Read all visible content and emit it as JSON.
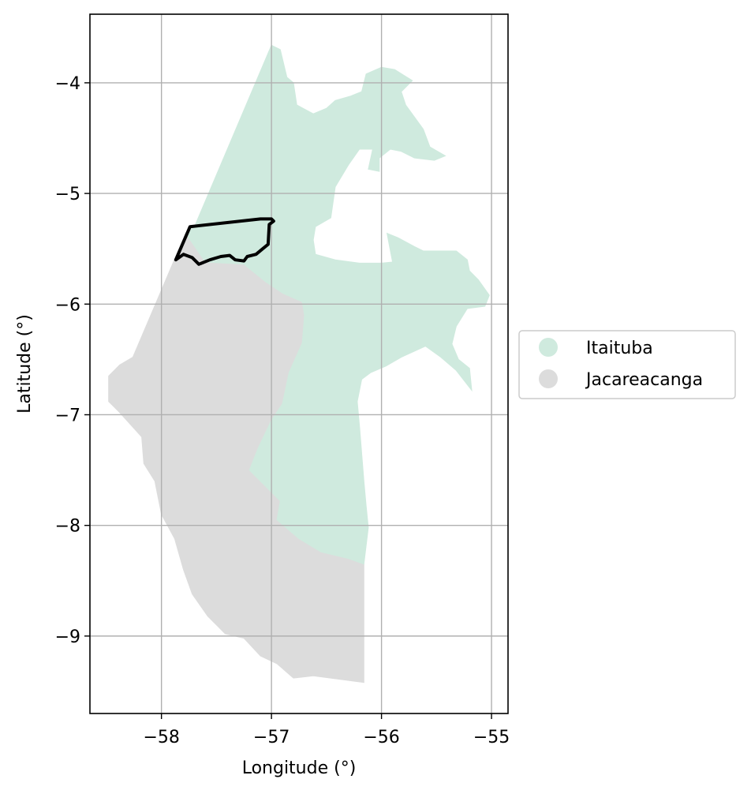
{
  "chart_data": {
    "type": "choropleth-map",
    "xlabel": "Longitude (°)",
    "ylabel": "Latitude (°)",
    "xlim": [
      -58.65,
      -54.85
    ],
    "ylim": [
      -9.7,
      -3.38
    ],
    "x_ticks": [
      -58,
      -57,
      -56,
      -55
    ],
    "y_ticks": [
      -4,
      -5,
      -6,
      -7,
      -8,
      -9
    ],
    "x_tick_labels": [
      "−58",
      "−57",
      "−56",
      "−55"
    ],
    "y_tick_labels": [
      "−4",
      "−5",
      "−6",
      "−7",
      "−8",
      "−9"
    ],
    "grid": true,
    "legend_placement": "right-center",
    "legend": [
      {
        "label": "Itaituba",
        "color": "#cfeade"
      },
      {
        "label": "Jacareacanga",
        "color": "#dcdcdc"
      }
    ],
    "regions": [
      {
        "name": "Jacareacanga",
        "color": "#dcdcdc",
        "polygon": [
          [
            -57.78,
            -5.36
          ],
          [
            -57.6,
            -5.62
          ],
          [
            -57.25,
            -5.64
          ],
          [
            -57.05,
            -5.8
          ],
          [
            -56.9,
            -5.9
          ],
          [
            -56.72,
            -5.98
          ],
          [
            -56.7,
            -6.1
          ],
          [
            -56.72,
            -6.35
          ],
          [
            -56.84,
            -6.62
          ],
          [
            -56.9,
            -6.9
          ],
          [
            -57.0,
            -7.05
          ],
          [
            -57.12,
            -7.3
          ],
          [
            -57.2,
            -7.5
          ],
          [
            -57.05,
            -7.65
          ],
          [
            -56.92,
            -7.78
          ],
          [
            -56.95,
            -7.95
          ],
          [
            -56.75,
            -8.12
          ],
          [
            -56.55,
            -8.24
          ],
          [
            -56.3,
            -8.3
          ],
          [
            -56.16,
            -8.35
          ],
          [
            -56.16,
            -9.2
          ],
          [
            -56.16,
            -9.42
          ],
          [
            -56.62,
            -9.36
          ],
          [
            -56.8,
            -9.38
          ],
          [
            -56.95,
            -9.25
          ],
          [
            -57.1,
            -9.18
          ],
          [
            -57.25,
            -9.02
          ],
          [
            -57.42,
            -8.98
          ],
          [
            -57.58,
            -8.82
          ],
          [
            -57.72,
            -8.62
          ],
          [
            -57.8,
            -8.4
          ],
          [
            -57.88,
            -8.12
          ],
          [
            -58.0,
            -7.9
          ],
          [
            -58.06,
            -7.6
          ],
          [
            -58.16,
            -7.44
          ],
          [
            -58.18,
            -7.2
          ],
          [
            -58.38,
            -6.98
          ],
          [
            -58.48,
            -6.88
          ],
          [
            -58.48,
            -6.65
          ],
          [
            -58.38,
            -6.55
          ],
          [
            -58.26,
            -6.48
          ]
        ]
      },
      {
        "name": "Itaituba",
        "color": "#cfeade",
        "polygon": [
          [
            -57.0,
            -3.66
          ],
          [
            -56.92,
            -3.7
          ],
          [
            -56.86,
            -3.95
          ],
          [
            -56.8,
            -4.0
          ],
          [
            -56.77,
            -4.2
          ],
          [
            -56.62,
            -4.28
          ],
          [
            -56.5,
            -4.23
          ],
          [
            -56.42,
            -4.16
          ],
          [
            -56.28,
            -4.12
          ],
          [
            -56.18,
            -4.08
          ],
          [
            -56.14,
            -3.92
          ],
          [
            -56.0,
            -3.86
          ],
          [
            -55.88,
            -3.88
          ],
          [
            -55.72,
            -3.98
          ],
          [
            -55.82,
            -4.08
          ],
          [
            -55.78,
            -4.2
          ],
          [
            -55.62,
            -4.42
          ],
          [
            -55.56,
            -4.58
          ],
          [
            -55.42,
            -4.66
          ],
          [
            -55.52,
            -4.7
          ],
          [
            -55.7,
            -4.68
          ],
          [
            -55.82,
            -4.62
          ],
          [
            -55.92,
            -4.6
          ],
          [
            -56.02,
            -4.68
          ],
          [
            -56.02,
            -4.8
          ],
          [
            -56.12,
            -4.78
          ],
          [
            -56.08,
            -4.6
          ],
          [
            -56.2,
            -4.6
          ],
          [
            -56.3,
            -4.74
          ],
          [
            -56.42,
            -4.94
          ],
          [
            -56.46,
            -5.22
          ],
          [
            -56.6,
            -5.3
          ],
          [
            -56.62,
            -5.42
          ],
          [
            -56.6,
            -5.55
          ],
          [
            -56.42,
            -5.6
          ],
          [
            -56.2,
            -5.63
          ],
          [
            -56.0,
            -5.63
          ],
          [
            -55.9,
            -5.62
          ],
          [
            -55.95,
            -5.36
          ],
          [
            -55.85,
            -5.4
          ],
          [
            -55.7,
            -5.48
          ],
          [
            -55.62,
            -5.52
          ],
          [
            -55.32,
            -5.52
          ],
          [
            -55.22,
            -5.6
          ],
          [
            -55.2,
            -5.7
          ],
          [
            -55.12,
            -5.78
          ],
          [
            -55.02,
            -5.92
          ],
          [
            -55.06,
            -6.02
          ],
          [
            -55.22,
            -6.04
          ],
          [
            -55.32,
            -6.2
          ],
          [
            -55.36,
            -6.36
          ],
          [
            -55.3,
            -6.5
          ],
          [
            -55.2,
            -6.58
          ],
          [
            -55.18,
            -6.78
          ],
          [
            -55.32,
            -6.6
          ],
          [
            -55.46,
            -6.48
          ],
          [
            -55.6,
            -6.38
          ],
          [
            -55.82,
            -6.48
          ],
          [
            -55.96,
            -6.56
          ],
          [
            -56.1,
            -6.62
          ],
          [
            -56.18,
            -6.68
          ],
          [
            -56.22,
            -6.88
          ],
          [
            -56.2,
            -7.1
          ],
          [
            -56.18,
            -7.35
          ],
          [
            -56.16,
            -7.6
          ],
          [
            -56.14,
            -7.82
          ],
          [
            -56.12,
            -8.02
          ],
          [
            -56.16,
            -8.35
          ],
          [
            -56.3,
            -8.3
          ],
          [
            -56.55,
            -8.24
          ],
          [
            -56.75,
            -8.12
          ],
          [
            -56.95,
            -7.95
          ],
          [
            -56.92,
            -7.78
          ],
          [
            -57.05,
            -7.65
          ],
          [
            -57.2,
            -7.5
          ],
          [
            -57.12,
            -7.3
          ],
          [
            -57.0,
            -7.05
          ],
          [
            -56.9,
            -6.9
          ],
          [
            -56.84,
            -6.62
          ],
          [
            -56.72,
            -6.35
          ],
          [
            -56.7,
            -6.1
          ],
          [
            -56.72,
            -5.98
          ],
          [
            -56.9,
            -5.9
          ],
          [
            -57.05,
            -5.8
          ],
          [
            -57.25,
            -5.64
          ],
          [
            -57.6,
            -5.62
          ],
          [
            -57.78,
            -5.36
          ],
          [
            -57.7,
            -5.3
          ]
        ]
      }
    ],
    "outline_polygon": [
      [
        -57.87,
        -5.6
      ],
      [
        -57.8,
        -5.55
      ],
      [
        -57.72,
        -5.58
      ],
      [
        -57.66,
        -5.64
      ],
      [
        -57.56,
        -5.6
      ],
      [
        -57.46,
        -5.57
      ],
      [
        -57.38,
        -5.56
      ],
      [
        -57.33,
        -5.6
      ],
      [
        -57.25,
        -5.61
      ],
      [
        -57.22,
        -5.57
      ],
      [
        -57.14,
        -5.55
      ],
      [
        -57.08,
        -5.5
      ],
      [
        -57.03,
        -5.46
      ],
      [
        -57.02,
        -5.28
      ],
      [
        -56.98,
        -5.25
      ],
      [
        -57.0,
        -5.23
      ],
      [
        -57.1,
        -5.23
      ],
      [
        -57.74,
        -5.3
      ]
    ]
  }
}
